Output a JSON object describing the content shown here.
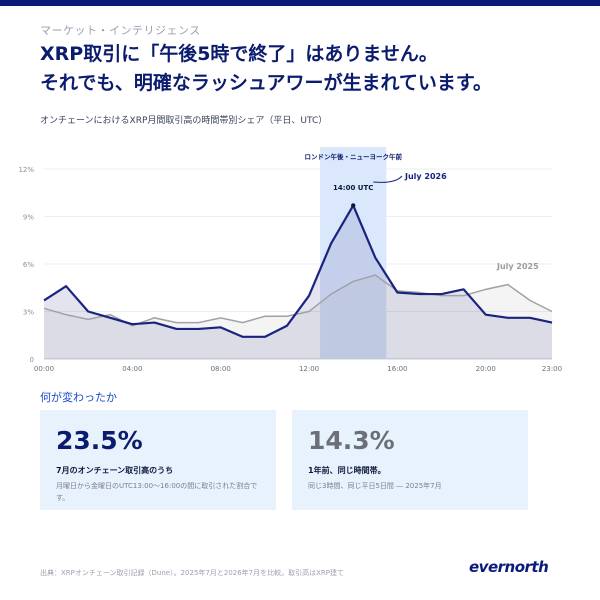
{
  "header": {
    "kicker": "マーケット・インテリジェンス",
    "headline_line1": "XRP取引に「午後5時で終了」はありません。",
    "headline_line2": "それでも、明確なラッシュアワーが生まれています。"
  },
  "chart_data": {
    "type": "line",
    "title": "オンチェーンにおけるXRP月間取引高の時間帯別シェア（平日、UTC）",
    "x_tick_labels": [
      "00:00",
      "04:00",
      "08:00",
      "12:00",
      "16:00",
      "20:00",
      "23:00"
    ],
    "x_tick_hours": [
      0,
      4,
      8,
      12,
      16,
      20,
      23
    ],
    "y_tick_labels": [
      "0",
      "3%",
      "6%",
      "9%",
      "12%"
    ],
    "y_tick_values": [
      0,
      3,
      6,
      9,
      12
    ],
    "ylim": [
      0,
      12
    ],
    "xlim": [
      0,
      23
    ],
    "grid": true,
    "highlight": {
      "label": "ロンドン午後・ニューヨーク午前",
      "x_range": [
        12.5,
        15.5
      ]
    },
    "annotation": {
      "label": "14:00 UTC",
      "x": 14,
      "y": 9.7
    },
    "series": [
      {
        "name": "July 2026",
        "color": "#1a237e",
        "x": [
          0,
          1,
          2,
          3,
          4,
          5,
          6,
          7,
          8,
          9,
          10,
          11,
          12,
          13,
          14,
          15,
          16,
          17,
          18,
          19,
          20,
          21,
          22,
          23
        ],
        "values": [
          3.7,
          4.6,
          3.0,
          2.6,
          2.2,
          2.3,
          1.9,
          1.9,
          2.0,
          1.4,
          1.4,
          2.1,
          4.0,
          7.3,
          9.7,
          6.4,
          4.2,
          4.1,
          4.1,
          4.4,
          2.8,
          2.6,
          2.6,
          2.3
        ]
      },
      {
        "name": "July 2025",
        "color": "#a2a2a6",
        "x": [
          0,
          1,
          2,
          3,
          4,
          5,
          6,
          7,
          8,
          9,
          10,
          11,
          12,
          13,
          14,
          15,
          16,
          17,
          18,
          19,
          20,
          21,
          22,
          23
        ],
        "values": [
          3.2,
          2.8,
          2.5,
          2.8,
          2.1,
          2.6,
          2.3,
          2.3,
          2.6,
          2.3,
          2.7,
          2.7,
          3.0,
          4.1,
          4.9,
          5.3,
          4.3,
          4.2,
          4.0,
          4.0,
          4.4,
          4.7,
          3.7,
          3.0
        ]
      }
    ]
  },
  "section": {
    "label": "何が変わったか"
  },
  "cards": [
    {
      "value": "23.5%",
      "label": "7月のオンチェーン取引高のうち",
      "desc": "月曜日から金曜日のUTC13:00～16:00の間に取引された割合です。"
    },
    {
      "value": "14.3%",
      "label": "1年前、同じ時間帯。",
      "desc": "同じ3時間、同じ平日5日間 ― 2025年7月"
    }
  ],
  "footer": {
    "source": "出典：XRPオンチェーン取引記録（Dune）。2025年7月と2026年7月を比較。取引高はXRP建て",
    "logo": "evernorth"
  },
  "colors": {
    "brand": "#0b1b7a",
    "primary_line": "#1a237e",
    "secondary_line": "#a2a2a6",
    "highlight_band": "#dbe7fb",
    "card_bg": "#e8f2fd",
    "accent_text": "#1a49c9"
  }
}
